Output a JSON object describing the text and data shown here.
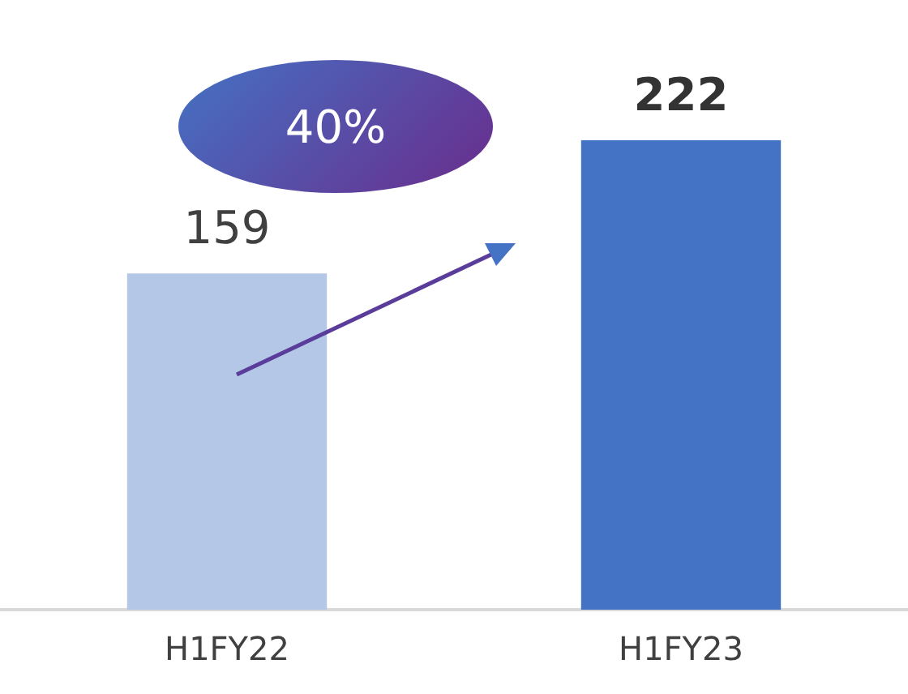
{
  "chart_data": {
    "type": "bar",
    "categories": [
      "H1FY22",
      "H1FY23"
    ],
    "values": [
      159,
      222
    ],
    "colors": [
      "#b4c7e7",
      "#4472c4"
    ],
    "data_labels": true,
    "grid": false,
    "legend": false,
    "tick_labels": "x",
    "annotations": [
      "40%"
    ]
  }
}
